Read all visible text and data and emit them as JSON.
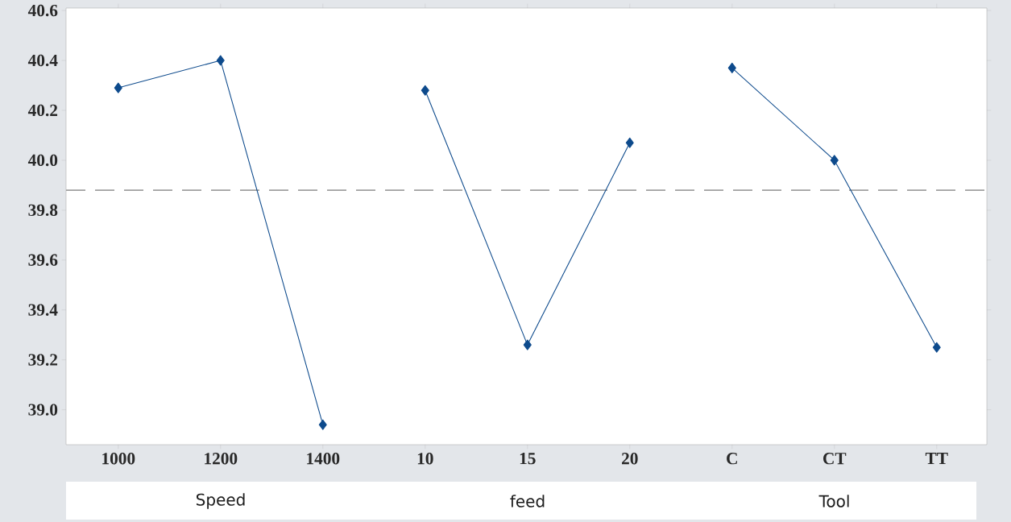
{
  "chart_data": {
    "type": "line",
    "categories": [
      "1000",
      "1200",
      "1400",
      "10",
      "15",
      "20",
      "C",
      "CT",
      "TT"
    ],
    "series": [
      {
        "color": "#0d4a8c",
        "values": [
          40.29,
          40.4,
          38.94,
          null,
          null,
          null,
          null,
          null,
          null
        ]
      },
      {
        "color": "#0d4a8c",
        "values": [
          null,
          null,
          null,
          40.28,
          39.26,
          40.07,
          null,
          null,
          null
        ]
      },
      {
        "color": "#0d4a8c",
        "values": [
          null,
          null,
          null,
          null,
          null,
          null,
          40.37,
          40.0,
          39.25
        ]
      }
    ],
    "ylim": [
      38.86,
      40.61
    ],
    "yticks": [
      {
        "value": 39.0,
        "label": "39.0"
      },
      39.2,
      39.4,
      39.6,
      39.8,
      {
        "value": 40.0,
        "label": "40.0"
      },
      40.2,
      40.4,
      40.6
    ],
    "ref_lines": [
      {
        "axis": "y",
        "value": 39.88,
        "color": "#a0a0a0",
        "line_style": "dashed"
      }
    ],
    "annotations": [
      "Speed",
      "feed",
      "Tool"
    ],
    "marker": "diamond",
    "line_style": "solid"
  }
}
